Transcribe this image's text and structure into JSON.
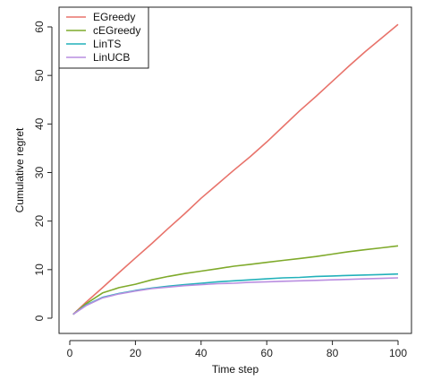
{
  "chart_data": {
    "type": "line",
    "title": "",
    "xlabel": "Time step",
    "ylabel": "Cumulative regret",
    "xlim": [
      0,
      100
    ],
    "ylim": [
      0,
      60
    ],
    "x_ticks": [
      0,
      20,
      40,
      60,
      80,
      100
    ],
    "y_ticks": [
      0,
      10,
      20,
      30,
      40,
      50,
      60
    ],
    "grid": false,
    "legend_position": "top-left",
    "x": [
      1,
      5,
      10,
      15,
      20,
      25,
      30,
      35,
      40,
      45,
      50,
      55,
      60,
      65,
      70,
      75,
      80,
      85,
      90,
      95,
      100
    ],
    "series": [
      {
        "name": "EGreedy",
        "color": "#e8736b",
        "values": [
          0.8,
          3.3,
          6.3,
          9.4,
          12.4,
          15.4,
          18.5,
          21.5,
          24.7,
          27.6,
          30.5,
          33.3,
          36.3,
          39.5,
          42.7,
          45.7,
          48.8,
          51.9,
          54.9,
          57.7,
          60.5
        ]
      },
      {
        "name": "cEGreedy",
        "color": "#7faa2b",
        "values": [
          0.8,
          3.0,
          5.2,
          6.3,
          7.0,
          7.9,
          8.6,
          9.2,
          9.7,
          10.2,
          10.7,
          11.1,
          11.5,
          11.9,
          12.3,
          12.7,
          13.2,
          13.7,
          14.1,
          14.5,
          14.9
        ]
      },
      {
        "name": "LinTS",
        "color": "#22b1ba",
        "values": [
          0.8,
          2.7,
          4.3,
          5.1,
          5.7,
          6.2,
          6.6,
          6.9,
          7.2,
          7.5,
          7.7,
          7.9,
          8.1,
          8.3,
          8.4,
          8.6,
          8.7,
          8.8,
          8.9,
          9.0,
          9.1
        ]
      },
      {
        "name": "LinUCB",
        "color": "#b98ee0",
        "values": [
          0.8,
          2.6,
          4.2,
          5.0,
          5.6,
          6.1,
          6.4,
          6.7,
          6.9,
          7.1,
          7.2,
          7.4,
          7.5,
          7.6,
          7.7,
          7.8,
          7.9,
          8.0,
          8.1,
          8.2,
          8.3
        ]
      }
    ]
  }
}
